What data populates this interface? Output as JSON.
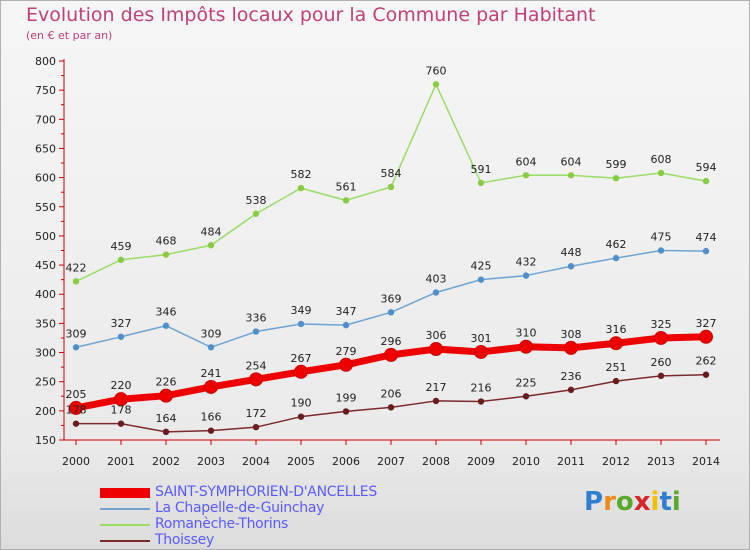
{
  "title": "Evolution des Impôts locaux pour la Commune par Habitant",
  "subtitle": "(en € et par an)",
  "logo": {
    "text": "Proxiti",
    "letter_colors": [
      "#2f7fd0",
      "#f08a1c",
      "#5aa92e",
      "#d8232a",
      "#f5c000",
      "#2f7fd0",
      "#5aa92e"
    ]
  },
  "chart_data": {
    "type": "line",
    "x": [
      2000,
      2001,
      2002,
      2003,
      2004,
      2005,
      2006,
      2007,
      2008,
      2009,
      2010,
      2011,
      2012,
      2013,
      2014
    ],
    "ylim": [
      150,
      800
    ],
    "yticks": [
      150,
      200,
      250,
      300,
      350,
      400,
      450,
      500,
      550,
      600,
      650,
      700,
      750,
      800
    ],
    "grid": false,
    "legend_position": "bottom-left",
    "series": [
      {
        "name": "SAINT-SYMPHORIEN-D'ANCELLES",
        "color": "#ee0000",
        "marker": "#ee0000",
        "emphasis": true,
        "values": [
          205,
          220,
          226,
          241,
          254,
          267,
          279,
          296,
          306,
          301,
          310,
          308,
          316,
          325,
          327
        ]
      },
      {
        "name": "La Chapelle-de-Guinchay",
        "color": "#6fa4d2",
        "marker": "#4f8fca",
        "emphasis": false,
        "values": [
          309,
          327,
          346,
          309,
          336,
          349,
          347,
          369,
          403,
          425,
          432,
          448,
          462,
          475,
          474
        ]
      },
      {
        "name": "Romanèche-Thorins",
        "color": "#99dd66",
        "marker": "#88cc44",
        "emphasis": false,
        "values": [
          422,
          459,
          468,
          484,
          538,
          582,
          561,
          584,
          760,
          591,
          604,
          604,
          599,
          608,
          594
        ]
      },
      {
        "name": "Thoissey",
        "color": "#7a2a2a",
        "marker": "#6a1c1c",
        "emphasis": false,
        "values": [
          178,
          178,
          164,
          166,
          172,
          190,
          199,
          206,
          217,
          216,
          225,
          236,
          251,
          260,
          262
        ]
      }
    ]
  }
}
